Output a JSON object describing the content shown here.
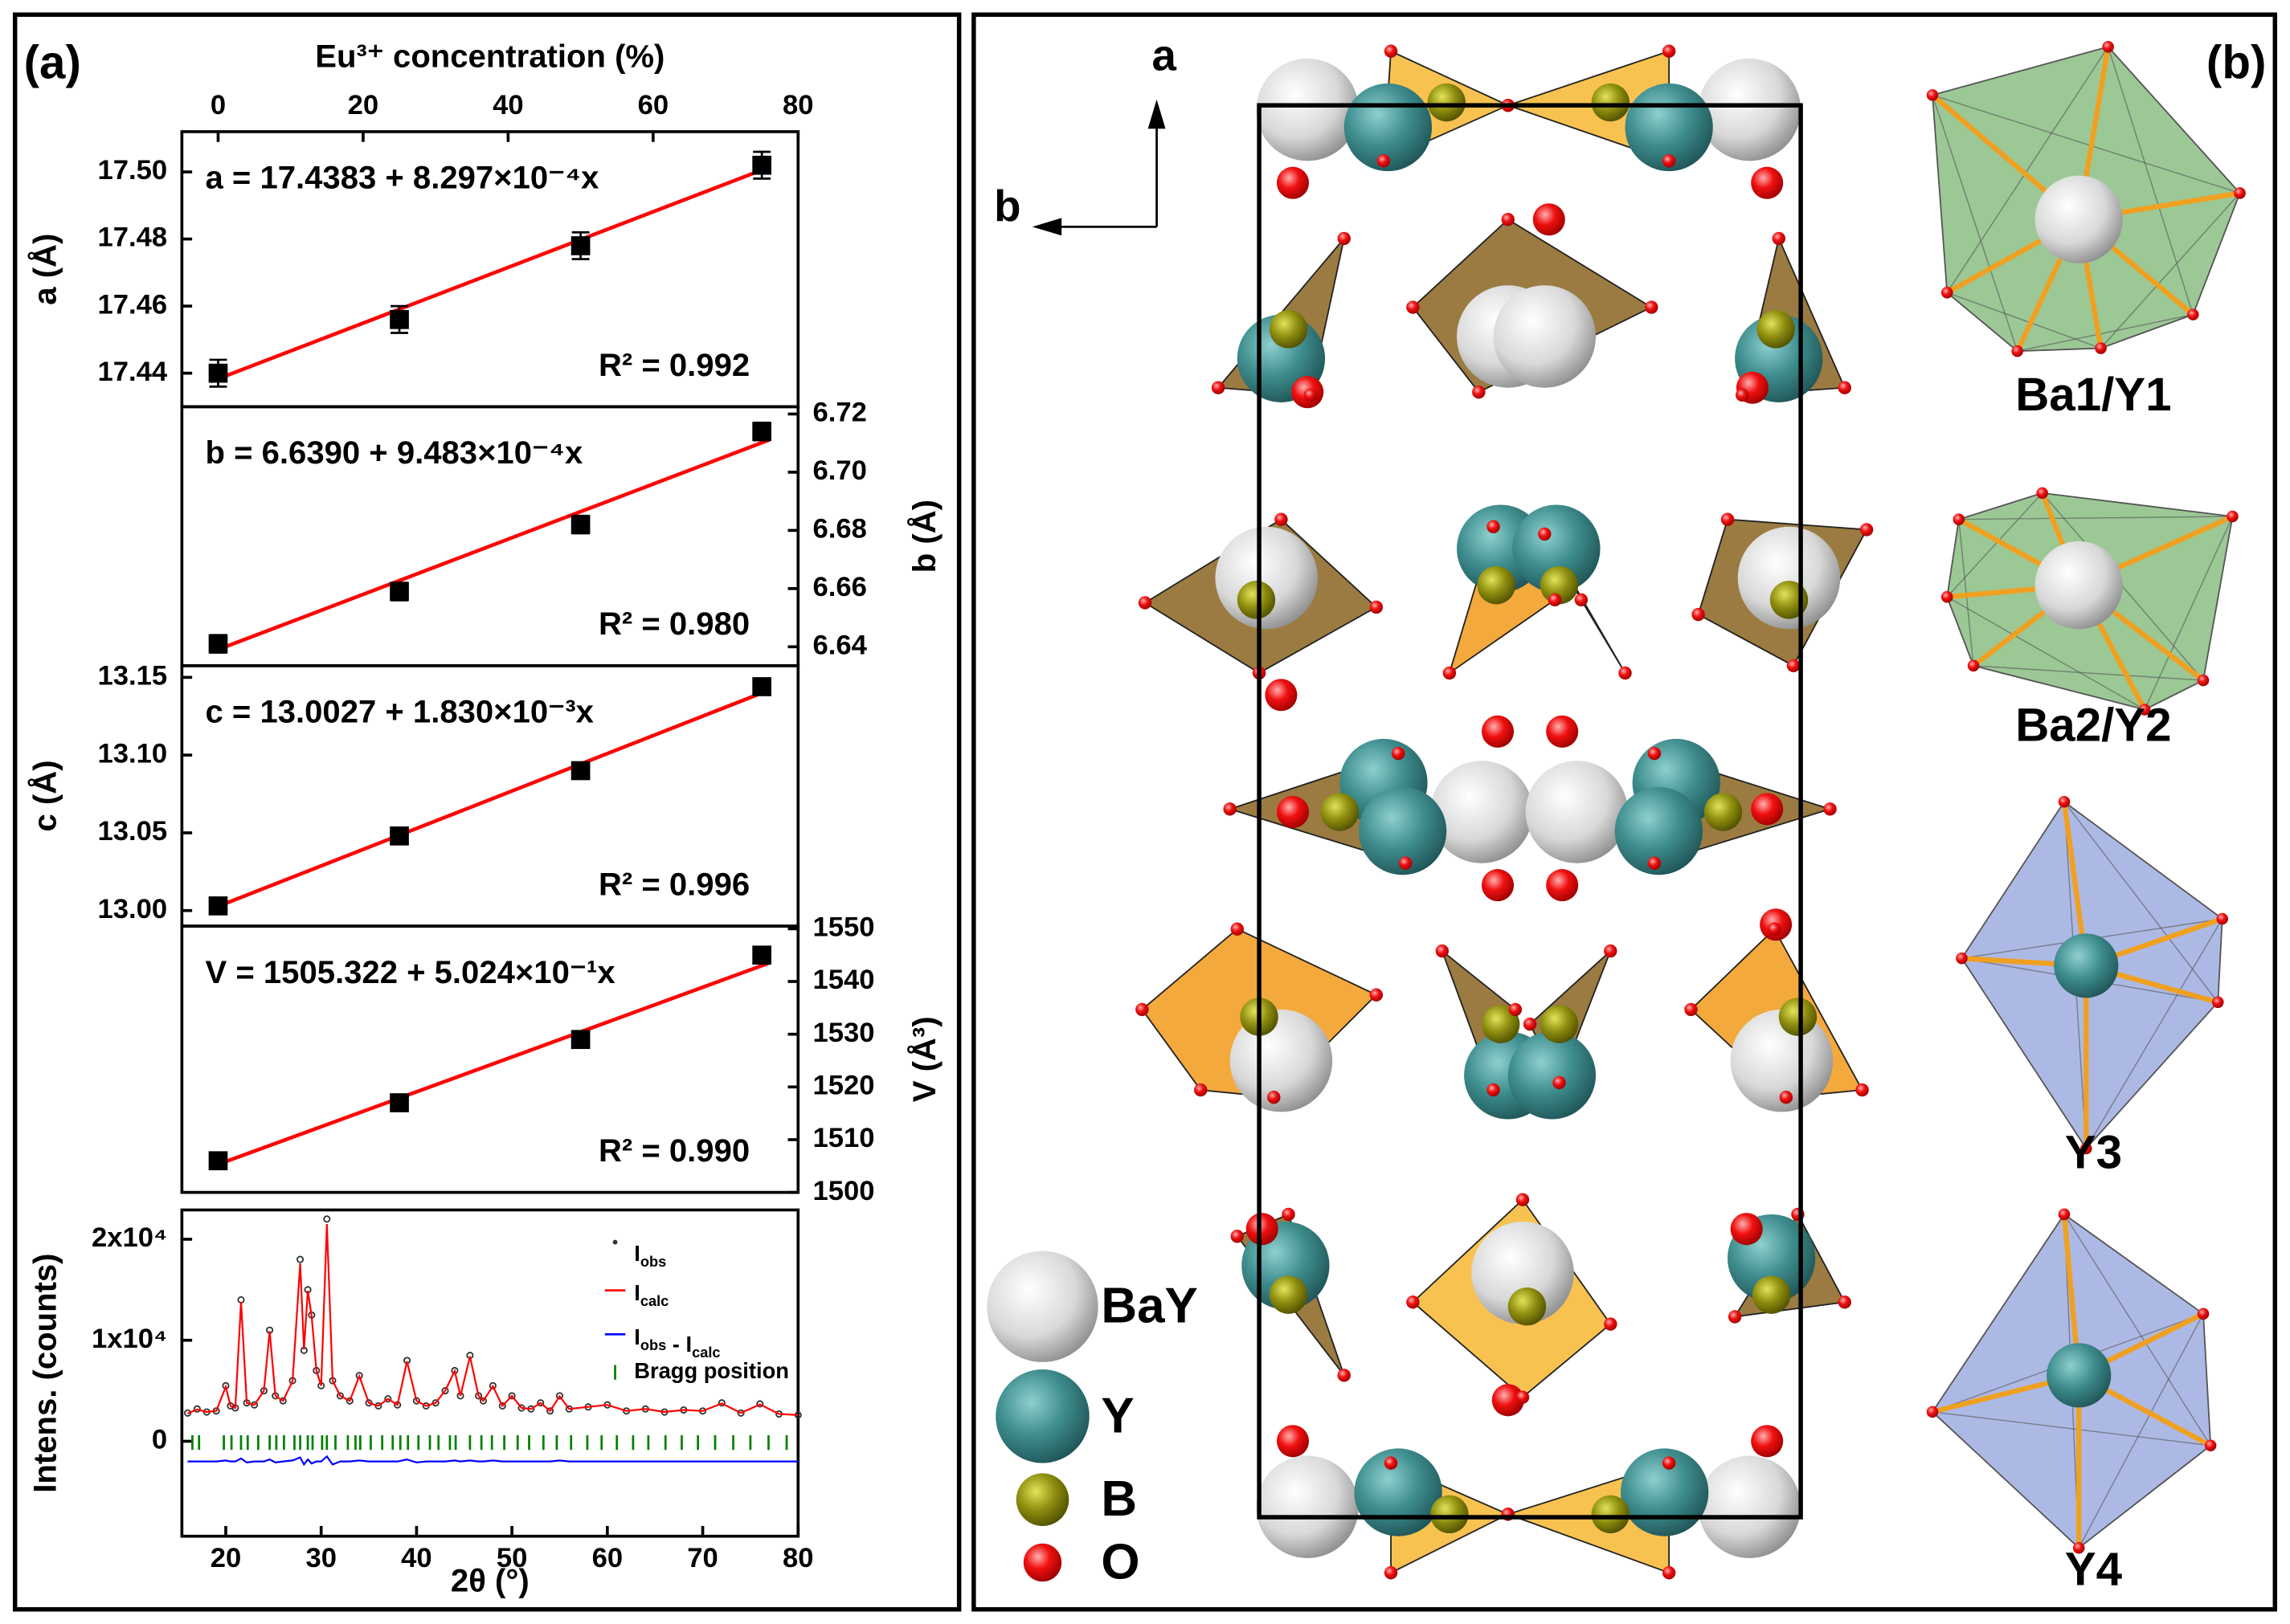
{
  "panel_labels": [
    "(a)",
    "(b)"
  ],
  "chart_data": [
    {
      "type": "scatter",
      "xlabel": "Eu³⁺ concentration (%)",
      "x_axis_side": "top",
      "xlim": [
        -5,
        80
      ],
      "xticks": [
        0,
        20,
        40,
        60,
        80
      ],
      "ylabel": "a (Å)",
      "y_axis_side": "left",
      "ylim": [
        17.43,
        17.512
      ],
      "yticks": [
        17.44,
        17.46,
        17.48,
        {
          "value": 17.5,
          "label": "17.50"
        }
      ],
      "x": [
        0,
        25,
        50,
        75
      ],
      "values": [
        17.44,
        17.456,
        17.478,
        17.502
      ],
      "errors": [
        0.004,
        0.004,
        0.004,
        0.004
      ],
      "color": "#000000",
      "fit_line": {
        "color": "#ff0000",
        "x": [
          -1,
          76
        ],
        "values": [
          17.4375,
          17.5014
        ]
      },
      "equation": "a = 17.4383 + 8.297×10⁻⁴x",
      "r2_label": "R² = 0.992"
    },
    {
      "type": "scatter",
      "ylabel": "b (Å)",
      "y_axis_side": "right",
      "ylim": [
        6.6335,
        6.7225
      ],
      "yticks": [
        6.64,
        6.66,
        6.68,
        {
          "value": 6.7,
          "label": "6.70"
        },
        6.72
      ],
      "x": [
        0,
        25,
        50,
        75
      ],
      "values": [
        6.641,
        6.659,
        6.682,
        6.714
      ],
      "errors": [
        0.003,
        0.003,
        0.003,
        0.003
      ],
      "color": "#000000",
      "fit_line": {
        "color": "#ff0000",
        "x": [
          -1,
          76
        ],
        "values": [
          6.6381,
          6.7111
        ]
      },
      "equation": "b = 6.6390 + 9.483×10⁻⁴x",
      "r2_label": "R² = 0.980"
    },
    {
      "type": "scatter",
      "ylabel": "c (Å)",
      "y_axis_side": "left",
      "ylim": [
        12.99,
        13.1575
      ],
      "yticks": [
        {
          "value": 13.0,
          "label": "13.00"
        },
        13.05,
        {
          "value": 13.1,
          "label": "13.10"
        },
        13.15
      ],
      "x": [
        0,
        25,
        50,
        75
      ],
      "values": [
        13.003,
        13.048,
        13.09,
        13.144
      ],
      "errors": [
        0.002,
        0.002,
        0.002,
        0.002
      ],
      "color": "#000000",
      "fit_line": {
        "color": "#ff0000",
        "x": [
          -1,
          76
        ],
        "values": [
          13.0009,
          13.1418
        ]
      },
      "equation": "c = 13.0027 + 1.830×10⁻³x",
      "r2_label": "R² = 0.996"
    },
    {
      "type": "scatter",
      "ylabel": "V (Å³)",
      "y_axis_side": "right",
      "ylim": [
        1500,
        1550.5
      ],
      "yticks": [
        1500,
        1510,
        1520,
        1530,
        1540,
        1550
      ],
      "x": [
        0,
        25,
        50,
        75
      ],
      "values": [
        1506,
        1517,
        1529,
        1545
      ],
      "errors": [
        0.6,
        0.6,
        0.6,
        0.6
      ],
      "color": "#000000",
      "fit_line": {
        "color": "#ff0000",
        "x": [
          -1,
          76
        ],
        "values": [
          1504.82,
          1543.5
        ]
      },
      "equation": "V = 1505.322 + 5.024×10⁻¹x",
      "r2_label": "R² = 0.990"
    },
    {
      "type": "line",
      "xlabel": "2θ (°)",
      "ylabel": "Intens. (counts)",
      "xlim": [
        15.4,
        80
      ],
      "xticks": [
        20,
        30,
        40,
        50,
        60,
        70,
        80
      ],
      "ylim": [
        -9400,
        22900
      ],
      "yticks": [
        0,
        {
          "value": 10000,
          "label": "1x10⁴"
        },
        {
          "value": 20000,
          "label": "2x10⁴"
        }
      ],
      "x": [
        16,
        17,
        18,
        19,
        20,
        20.5,
        21,
        21.6,
        22.2,
        23,
        24,
        24.6,
        25.2,
        26,
        27,
        27.8,
        28.2,
        28.6,
        29,
        29.5,
        30,
        30.6,
        31.2,
        32,
        33,
        34,
        35,
        36,
        37,
        38,
        39,
        40,
        41,
        42,
        43,
        44,
        44.6,
        45.6,
        46.5,
        47,
        48,
        49,
        50,
        51,
        52,
        53,
        54,
        55,
        56,
        58,
        60,
        62,
        64,
        66,
        68,
        70,
        72,
        74,
        76,
        78,
        80
      ],
      "series": [
        {
          "name": "Iobs",
          "color": "#333333",
          "style": "markers",
          "values": [
            2800,
            3200,
            2900,
            3000,
            5500,
            3500,
            3300,
            14000,
            3800,
            3600,
            5000,
            11000,
            4500,
            4000,
            6000,
            18000,
            9000,
            15000,
            12500,
            7000,
            5500,
            22000,
            6000,
            4500,
            4000,
            6500,
            3800,
            3500,
            4200,
            3600,
            8000,
            4000,
            3500,
            3800,
            5000,
            7000,
            4500,
            8500,
            4500,
            4000,
            5500,
            3500,
            4500,
            3300,
            3200,
            3800,
            3000,
            4500,
            3200,
            3400,
            3600,
            3000,
            3200,
            2900,
            3100,
            3000,
            3800,
            2800,
            3700,
            2700,
            2600
          ]
        },
        {
          "name": "Icalc",
          "color": "#ff0000",
          "style": "line",
          "values": [
            2750,
            3150,
            2900,
            3000,
            5400,
            3500,
            3300,
            13800,
            3800,
            3600,
            5000,
            10900,
            4500,
            4000,
            5950,
            17600,
            9100,
            14900,
            12400,
            7000,
            5500,
            21500,
            6000,
            4500,
            4000,
            6450,
            3800,
            3500,
            4200,
            3600,
            7900,
            4000,
            3500,
            3800,
            5000,
            6950,
            4500,
            8400,
            4500,
            4000,
            5450,
            3500,
            4500,
            3300,
            3200,
            3800,
            3000,
            4450,
            3200,
            3400,
            3600,
            3000,
            3200,
            2900,
            3100,
            3000,
            3750,
            2800,
            3650,
            2700,
            2600
          ]
        },
        {
          "name": "Iobs - Icalc",
          "color": "#0000ff",
          "style": "line",
          "values": [
            -2000,
            -2000,
            -2000,
            -2000,
            -1900,
            -2000,
            -2000,
            -1700,
            -2100,
            -2000,
            -2000,
            -1800,
            -2100,
            -2000,
            -1900,
            -1600,
            -2300,
            -1800,
            -2200,
            -2000,
            -2000,
            -1500,
            -2300,
            -2000,
            -2000,
            -1900,
            -2000,
            -2000,
            -2000,
            -2000,
            -1800,
            -2100,
            -2000,
            -2000,
            -2000,
            -1900,
            -2000,
            -1900,
            -2000,
            -2000,
            -1900,
            -2000,
            -2000,
            -2000,
            -2000,
            -2000,
            -2000,
            -1900,
            -2000,
            -2000,
            -2000,
            -2000,
            -2000,
            -2000,
            -2000,
            -2000,
            -2000,
            -2000,
            -2000,
            -2000,
            -2000
          ]
        }
      ],
      "bragg": {
        "name": "Bragg position",
        "color": "#008000",
        "x": [
          16.5,
          17.2,
          19.8,
          20.6,
          21.6,
          22.3,
          23.4,
          24.6,
          25.3,
          26.1,
          27.2,
          27.8,
          28.6,
          29.1,
          30.1,
          30.6,
          31.5,
          32.8,
          33.6,
          34.1,
          35.2,
          36.4,
          37.5,
          38.3,
          39.1,
          40.2,
          41.4,
          42.3,
          43.5,
          44.1,
          45.6,
          46.8,
          47.9,
          49.2,
          50.6,
          51.8,
          53.3,
          54.7,
          56.2,
          57.9,
          59.4,
          61.0,
          62.7,
          64.3,
          66.1,
          67.8,
          69.5,
          71.3,
          73.2,
          75.0,
          76.9,
          78.8
        ]
      }
    }
  ],
  "structure": {
    "axes": [
      "a",
      "b"
    ],
    "legend": [
      "BaY",
      "Y",
      "B",
      "O"
    ],
    "polyhedra": [
      "Ba1/Y1",
      "Ba2/Y2",
      "Y3",
      "Y4"
    ]
  }
}
